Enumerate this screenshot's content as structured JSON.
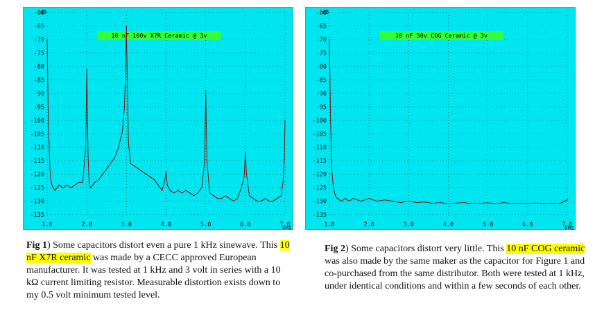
{
  "chart_data": [
    {
      "type": "line",
      "title": "10 nF 100v X7R Ceramic @ 3v",
      "unit_label": "dB",
      "x_unit_label": "kHz",
      "xlim": [
        1.0,
        7.0
      ],
      "ylim": [
        -136,
        -60
      ],
      "x_ticks": [
        "1.0",
        "2.0",
        "3.0",
        "4.0",
        "5.0",
        "6.0",
        "7.0"
      ],
      "y_ticks": [
        "-60",
        "-65",
        "-70",
        "-75",
        "-80",
        "-85",
        "-90",
        "-95",
        "-100",
        "-105",
        "-110",
        "-115",
        "-120",
        "-125",
        "-130",
        "-135"
      ],
      "grid": true,
      "colors": {
        "background": "#00e6f0",
        "line": "#801010",
        "title_bg": "#33ff33"
      },
      "x": [
        1.0,
        1.03,
        1.07,
        1.1,
        1.15,
        1.2,
        1.3,
        1.4,
        1.5,
        1.6,
        1.7,
        1.8,
        1.9,
        1.97,
        2.0,
        2.03,
        2.06,
        2.1,
        2.2,
        2.3,
        2.4,
        2.5,
        2.6,
        2.7,
        2.8,
        2.9,
        2.95,
        2.98,
        3.0,
        3.02,
        3.05,
        3.1,
        3.2,
        3.3,
        3.4,
        3.5,
        3.6,
        3.7,
        3.8,
        3.9,
        3.97,
        4.0,
        4.03,
        4.1,
        4.2,
        4.3,
        4.4,
        4.5,
        4.6,
        4.7,
        4.8,
        4.9,
        4.97,
        5.0,
        5.03,
        5.1,
        5.2,
        5.3,
        5.4,
        5.5,
        5.6,
        5.7,
        5.8,
        5.9,
        5.97,
        6.0,
        6.03,
        6.1,
        6.2,
        6.3,
        6.4,
        6.5,
        6.6,
        6.7,
        6.8,
        6.9,
        6.95,
        6.98,
        7.0
      ],
      "values": [
        -70,
        -100,
        -118,
        -123,
        -125,
        -126,
        -124,
        -125,
        -124,
        -125,
        -124,
        -123,
        -123,
        -110,
        -81,
        -112,
        -124,
        -125,
        -123,
        -122,
        -120,
        -118,
        -116,
        -114,
        -110,
        -104,
        -95,
        -80,
        -65,
        -85,
        -108,
        -116,
        -117,
        -118,
        -119,
        -120,
        -121,
        -122,
        -124,
        -126,
        -122,
        -119,
        -124,
        -126,
        -127,
        -126,
        -127,
        -126,
        -127,
        -128,
        -127,
        -125,
        -115,
        -89,
        -115,
        -127,
        -128,
        -129,
        -129,
        -128,
        -129,
        -130,
        -129,
        -125,
        -121,
        -112,
        -120,
        -128,
        -129,
        -130,
        -130,
        -129,
        -130,
        -130,
        -129,
        -128,
        -123,
        -115,
        -100
      ]
    },
    {
      "type": "line",
      "title": "10 nF 50v COG Ceramic @ 3v",
      "unit_label": "dB",
      "x_unit_label": "kHz",
      "xlim": [
        1.0,
        7.0
      ],
      "ylim": [
        -136,
        -60
      ],
      "x_ticks": [
        "1.0",
        "2.0",
        "3.0",
        "4.0",
        "5.0",
        "6.0",
        "7.0"
      ],
      "y_ticks": [
        "-60",
        "-65",
        "-70",
        "-75",
        "-80",
        "-85",
        "-90",
        "-95",
        "-100",
        "-105",
        "-110",
        "-115",
        "-120",
        "-125",
        "-130",
        "-135"
      ],
      "grid": true,
      "colors": {
        "background": "#00e6f0",
        "line": "#801010",
        "title_bg": "#33ff33"
      },
      "x": [
        1.0,
        1.03,
        1.06,
        1.1,
        1.15,
        1.2,
        1.3,
        1.4,
        1.5,
        1.6,
        1.8,
        2.0,
        2.2,
        2.4,
        2.6,
        2.8,
        3.0,
        3.2,
        3.4,
        3.6,
        3.8,
        4.0,
        4.2,
        4.4,
        4.6,
        4.8,
        5.0,
        5.2,
        5.4,
        5.6,
        5.8,
        6.0,
        6.2,
        6.4,
        6.6,
        6.8,
        7.0
      ],
      "values": [
        -70,
        -100,
        -118,
        -125,
        -128,
        -129,
        -130,
        -129,
        -130,
        -129,
        -130,
        -129,
        -130,
        -129.5,
        -130,
        -130.5,
        -130,
        -130.5,
        -130.3,
        -130.8,
        -130.5,
        -131,
        -130.7,
        -130.5,
        -131,
        -130.8,
        -130.6,
        -131,
        -130.5,
        -131,
        -130.8,
        -131,
        -130.7,
        -131,
        -130.8,
        -131,
        -129.5
      ]
    }
  ],
  "captions": {
    "fig1": {
      "label": "Fig 1",
      "t1": ") Some capacitors distort even a pure 1 kHz sinewave. This ",
      "highlight": "10 nF X7R ceramic",
      "t2": " was made by a CECC approved European manufacturer. It was tested at 1 kHz and 3 volt in series with a 10 kΩ current limiting resistor. Measurable distortion exists down to my 0.5 volt minimum tested level."
    },
    "fig2": {
      "label": "Fig 2",
      "t1": ") Some capacitors distort very little. This ",
      "highlight": "10 nF COG ceramic",
      "t2": " was also made by the same maker as the capacitor for Figure 1 and co-purchased from the same distributor. Both were tested at 1 kHz, under identical conditions and within a few seconds of each other."
    }
  }
}
